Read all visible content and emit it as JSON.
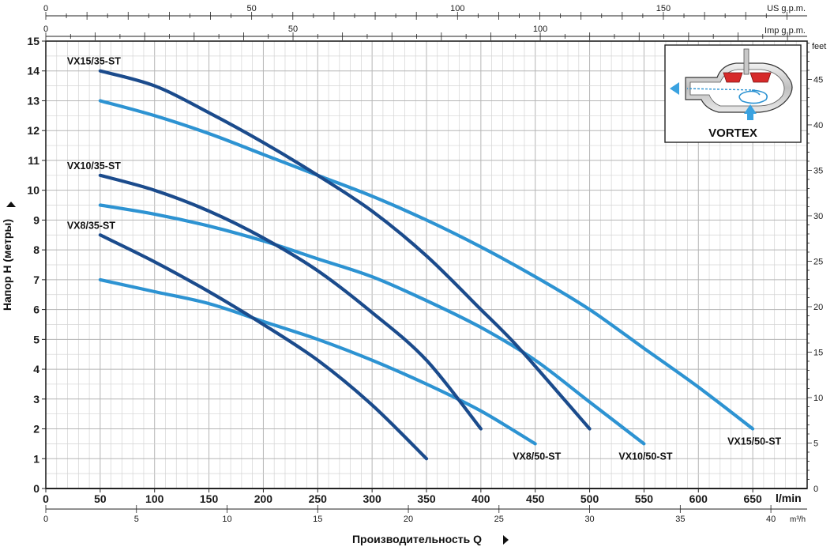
{
  "chart_data": {
    "type": "line",
    "xlabel": "Производительность Q",
    "ylabel": "Напор H (метры)",
    "x_unit": "l/min",
    "xlim": [
      0,
      700
    ],
    "ylim": [
      0,
      15
    ],
    "x_ticks": [
      0,
      50,
      100,
      150,
      200,
      250,
      300,
      350,
      400,
      450,
      500,
      550,
      600,
      650
    ],
    "y_ticks": [
      0,
      1,
      2,
      3,
      4,
      5,
      6,
      7,
      8,
      9,
      10,
      11,
      12,
      13,
      14,
      15
    ],
    "grid": true,
    "secondary_axes": {
      "top_us": {
        "unit": "US g.p.m.",
        "ticks": [
          "0",
          "50",
          "100",
          "150"
        ]
      },
      "top_imp": {
        "unit": "Imp g.p.m.",
        "ticks": [
          "0",
          "50",
          "100"
        ]
      },
      "bottom_m3h": {
        "unit": "m³/h",
        "ticks": [
          "0",
          "5",
          "10",
          "15",
          "20",
          "25",
          "30",
          "35",
          "40"
        ]
      },
      "right_feet": {
        "unit": "feet",
        "ticks": [
          "0",
          "5",
          "10",
          "15",
          "20",
          "25",
          "30",
          "35",
          "40",
          "45"
        ]
      }
    },
    "series": [
      {
        "name": "VX15/35-ST",
        "color": "#1b4b8c",
        "x": [
          50,
          100,
          150,
          200,
          250,
          300,
          350,
          400
        ],
        "y": [
          14.0,
          13.5,
          12.6,
          11.6,
          10.5,
          9.3,
          7.8,
          6.0
        ]
      },
      {
        "name": "VX15/35-ST",
        "color": "#1b4b8c",
        "x": [
          400,
          425,
          450,
          500
        ],
        "y": [
          6.0,
          5.1,
          4.1,
          2.0
        ]
      },
      {
        "name": "VX15/50-ST",
        "color": "#2d93d2",
        "x": [
          50,
          100,
          150,
          200,
          250,
          300,
          350,
          400,
          450,
          500,
          550,
          600,
          650
        ],
        "y": [
          13.0,
          12.5,
          11.9,
          11.2,
          10.5,
          9.8,
          9.0,
          8.1,
          7.1,
          6.0,
          4.7,
          3.4,
          2.0
        ]
      },
      {
        "name": "VX10/35-ST",
        "color": "#1b4b8c",
        "x": [
          50,
          100,
          150,
          200,
          250,
          300,
          350,
          400
        ],
        "y": [
          10.5,
          10.0,
          9.3,
          8.4,
          7.3,
          5.9,
          4.3,
          2.0
        ]
      },
      {
        "name": "VX10/50-ST",
        "color": "#2d93d2",
        "x": [
          50,
          100,
          150,
          200,
          250,
          300,
          350,
          400,
          450,
          500,
          550
        ],
        "y": [
          9.5,
          9.2,
          8.8,
          8.3,
          7.7,
          7.1,
          6.3,
          5.4,
          4.3,
          2.9,
          1.5
        ]
      },
      {
        "name": "VX8/35-ST",
        "color": "#1b4b8c",
        "x": [
          50,
          100,
          150,
          200,
          250,
          300,
          350
        ],
        "y": [
          8.5,
          7.6,
          6.6,
          5.5,
          4.3,
          2.8,
          1.0
        ]
      },
      {
        "name": "VX8/50-ST",
        "color": "#2d93d2",
        "x": [
          50,
          100,
          150,
          200,
          250,
          300,
          350,
          400,
          450
        ],
        "y": [
          7.0,
          6.6,
          6.2,
          5.6,
          5.0,
          4.3,
          3.5,
          2.6,
          1.5
        ]
      }
    ],
    "curve_labels": [
      {
        "text": "VX15/35-ST",
        "at": [
          50,
          14.0
        ]
      },
      {
        "text": "VX10/35-ST",
        "at": [
          50,
          10.5
        ]
      },
      {
        "text": "VX8/35-ST",
        "at": [
          50,
          8.5
        ]
      },
      {
        "text": "VX8/50-ST",
        "at": [
          450,
          1.5
        ]
      },
      {
        "text": "VX10/50-ST",
        "at": [
          550,
          1.5
        ]
      },
      {
        "text": "VX15/50-ST",
        "at": [
          650,
          2.0
        ]
      }
    ],
    "inset": {
      "label": "VORTEX"
    }
  }
}
